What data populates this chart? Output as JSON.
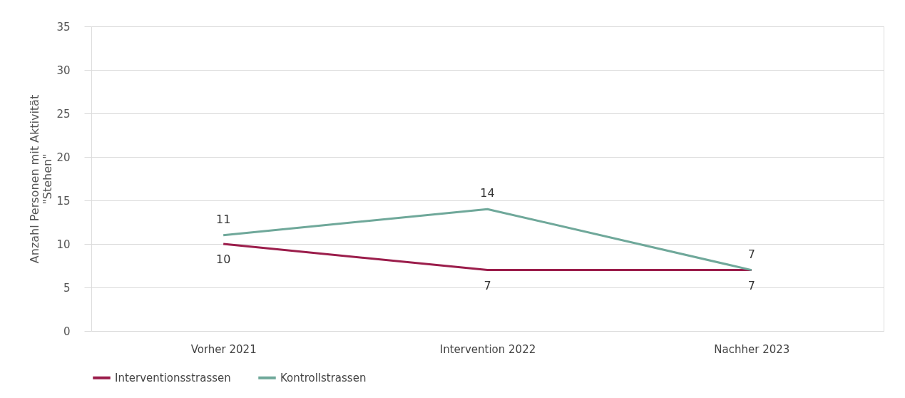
{
  "chart_data": {
    "type": "line",
    "ylabel": "Anzahl Personen mit Aktivität \"Stehen\"",
    "categories": [
      "Vorher 2021",
      "Intervention 2022",
      "Nachher 2023"
    ],
    "series": [
      {
        "name": "Interventionsstrassen",
        "color": "#9b1d4b",
        "values": [
          10,
          7,
          7
        ]
      },
      {
        "name": "Kontrollstrassen",
        "color": "#6fa89a",
        "values": [
          11,
          14,
          7
        ]
      }
    ],
    "ylim": [
      0,
      35
    ],
    "yticks": [
      0,
      5,
      10,
      15,
      20,
      25,
      30,
      35
    ],
    "grid": "y",
    "legend": "bottom",
    "data_labels": true,
    "marker": "none",
    "line_style": "solid"
  }
}
